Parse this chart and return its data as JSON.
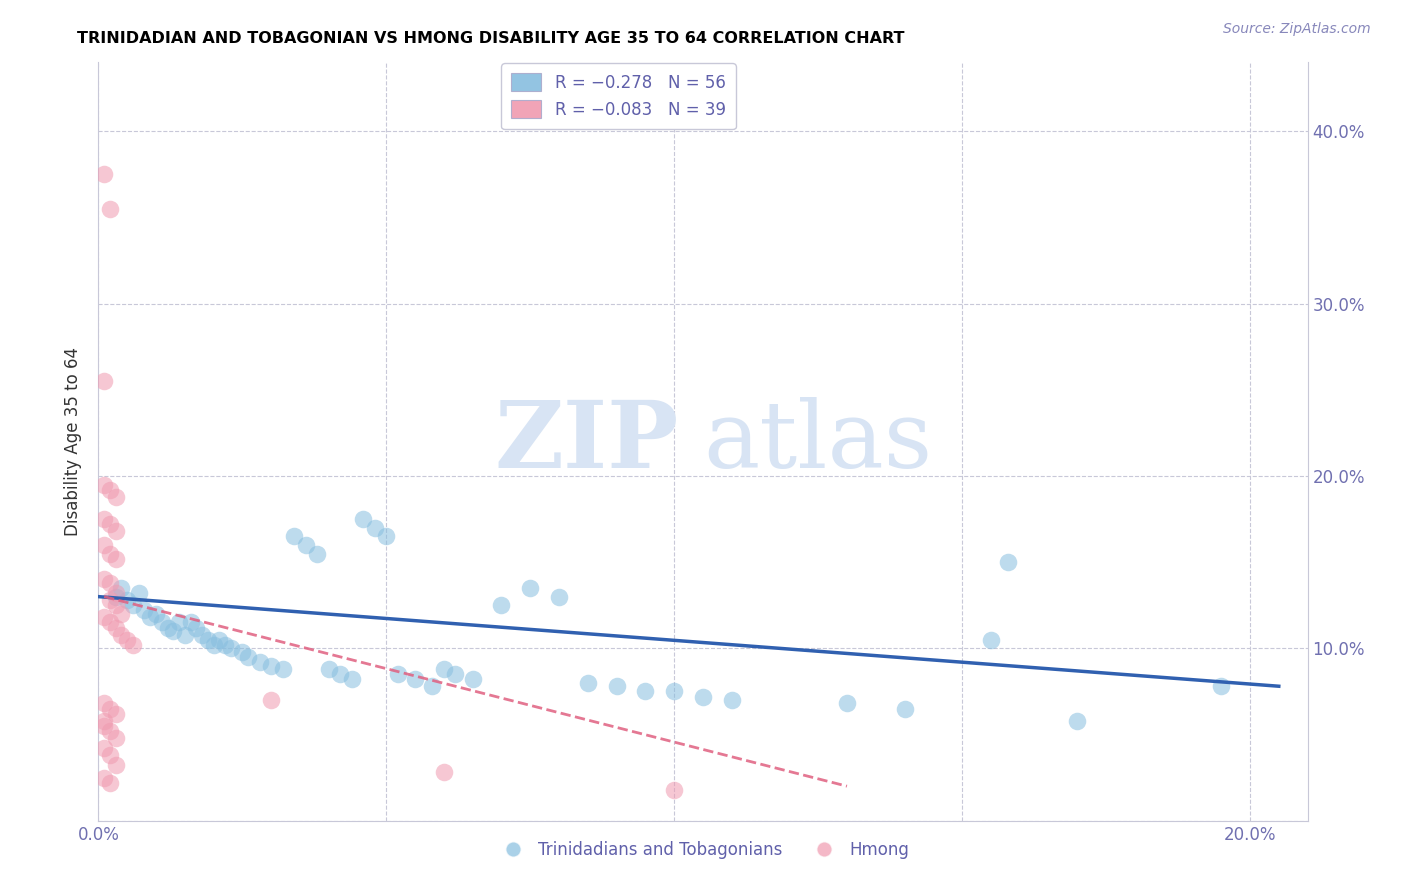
{
  "title": "TRINIDADIAN AND TOBAGONIAN VS HMONG DISABILITY AGE 35 TO 64 CORRELATION CHART",
  "source": "Source: ZipAtlas.com",
  "ylabel": "Disability Age 35 to 64",
  "xlim": [
    0.0,
    0.21
  ],
  "ylim": [
    0.0,
    0.44
  ],
  "xtick_positions": [
    0.0,
    0.05,
    0.1,
    0.15,
    0.2
  ],
  "xtick_labels": [
    "0.0%",
    "",
    "",
    "",
    "20.0%"
  ],
  "ytick_positions": [
    0.0,
    0.1,
    0.2,
    0.3,
    0.4
  ],
  "ytick_labels_right": [
    "",
    "10.0%",
    "20.0%",
    "30.0%",
    "40.0%"
  ],
  "legend_box_entries": [
    {
      "label": "R = −0.278   N = 56",
      "color": "#a8c8e8"
    },
    {
      "label": "R = −0.083   N = 39",
      "color": "#f4b0c0"
    }
  ],
  "bottom_legend": [
    "Trinidadians and Tobagonians",
    "Hmong"
  ],
  "blue_color": "#87bedf",
  "pink_color": "#f09ab0",
  "blue_line_color": "#3060b0",
  "pink_line_color": "#e06080",
  "watermark_zip": "ZIP",
  "watermark_atlas": "atlas",
  "blue_scatter": [
    [
      0.003,
      0.13
    ],
    [
      0.004,
      0.135
    ],
    [
      0.005,
      0.128
    ],
    [
      0.006,
      0.125
    ],
    [
      0.007,
      0.132
    ],
    [
      0.008,
      0.122
    ],
    [
      0.009,
      0.118
    ],
    [
      0.01,
      0.12
    ],
    [
      0.011,
      0.115
    ],
    [
      0.012,
      0.112
    ],
    [
      0.013,
      0.11
    ],
    [
      0.014,
      0.115
    ],
    [
      0.015,
      0.108
    ],
    [
      0.016,
      0.115
    ],
    [
      0.017,
      0.112
    ],
    [
      0.018,
      0.108
    ],
    [
      0.019,
      0.105
    ],
    [
      0.02,
      0.102
    ],
    [
      0.021,
      0.105
    ],
    [
      0.022,
      0.102
    ],
    [
      0.023,
      0.1
    ],
    [
      0.025,
      0.098
    ],
    [
      0.026,
      0.095
    ],
    [
      0.028,
      0.092
    ],
    [
      0.03,
      0.09
    ],
    [
      0.032,
      0.088
    ],
    [
      0.034,
      0.165
    ],
    [
      0.036,
      0.16
    ],
    [
      0.038,
      0.155
    ],
    [
      0.04,
      0.088
    ],
    [
      0.042,
      0.085
    ],
    [
      0.044,
      0.082
    ],
    [
      0.046,
      0.175
    ],
    [
      0.048,
      0.17
    ],
    [
      0.05,
      0.165
    ],
    [
      0.052,
      0.085
    ],
    [
      0.055,
      0.082
    ],
    [
      0.058,
      0.078
    ],
    [
      0.06,
      0.088
    ],
    [
      0.062,
      0.085
    ],
    [
      0.065,
      0.082
    ],
    [
      0.07,
      0.125
    ],
    [
      0.075,
      0.135
    ],
    [
      0.08,
      0.13
    ],
    [
      0.085,
      0.08
    ],
    [
      0.09,
      0.078
    ],
    [
      0.095,
      0.075
    ],
    [
      0.1,
      0.075
    ],
    [
      0.105,
      0.072
    ],
    [
      0.11,
      0.07
    ],
    [
      0.13,
      0.068
    ],
    [
      0.14,
      0.065
    ],
    [
      0.155,
      0.105
    ],
    [
      0.158,
      0.15
    ],
    [
      0.17,
      0.058
    ],
    [
      0.195,
      0.078
    ]
  ],
  "pink_scatter": [
    [
      0.001,
      0.375
    ],
    [
      0.002,
      0.355
    ],
    [
      0.001,
      0.255
    ],
    [
      0.001,
      0.195
    ],
    [
      0.002,
      0.192
    ],
    [
      0.003,
      0.188
    ],
    [
      0.001,
      0.175
    ],
    [
      0.002,
      0.172
    ],
    [
      0.003,
      0.168
    ],
    [
      0.001,
      0.16
    ],
    [
      0.002,
      0.155
    ],
    [
      0.003,
      0.152
    ],
    [
      0.001,
      0.14
    ],
    [
      0.002,
      0.138
    ],
    [
      0.003,
      0.132
    ],
    [
      0.002,
      0.128
    ],
    [
      0.003,
      0.125
    ],
    [
      0.004,
      0.12
    ],
    [
      0.001,
      0.118
    ],
    [
      0.002,
      0.115
    ],
    [
      0.003,
      0.112
    ],
    [
      0.004,
      0.108
    ],
    [
      0.005,
      0.105
    ],
    [
      0.006,
      0.102
    ],
    [
      0.001,
      0.068
    ],
    [
      0.002,
      0.065
    ],
    [
      0.003,
      0.062
    ],
    [
      0.001,
      0.055
    ],
    [
      0.002,
      0.052
    ],
    [
      0.003,
      0.048
    ],
    [
      0.001,
      0.042
    ],
    [
      0.002,
      0.038
    ],
    [
      0.003,
      0.032
    ],
    [
      0.001,
      0.025
    ],
    [
      0.002,
      0.022
    ],
    [
      0.001,
      0.058
    ],
    [
      0.03,
      0.07
    ],
    [
      0.06,
      0.028
    ],
    [
      0.1,
      0.018
    ]
  ],
  "blue_line_x0": 0.0,
  "blue_line_x1": 0.205,
  "blue_line_y0": 0.13,
  "blue_line_y1": 0.078,
  "pink_line_x0": 0.001,
  "pink_line_x1": 0.13,
  "pink_line_y0": 0.13,
  "pink_line_y1": 0.02
}
